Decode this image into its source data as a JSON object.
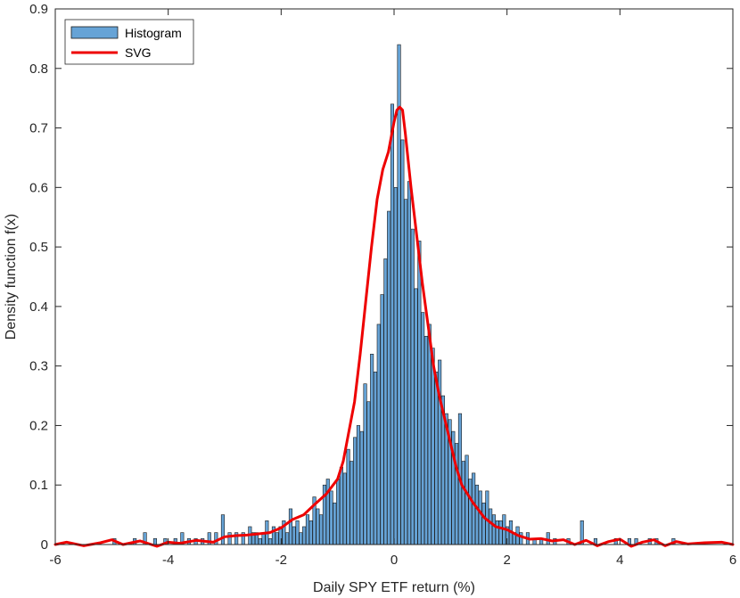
{
  "chart_data": {
    "type": "bar",
    "title": "",
    "xlabel": "Daily SPY ETF return (%)",
    "ylabel": "Density function f(x)",
    "xlim": [
      -6,
      6
    ],
    "ylim": [
      0,
      0.9
    ],
    "xticks": [
      -6,
      -4,
      -2,
      0,
      2,
      4,
      6
    ],
    "yticks": [
      0,
      0.1,
      0.2,
      0.3,
      0.4,
      0.5,
      0.6,
      0.7,
      0.8,
      0.9
    ],
    "grid": false,
    "legend_location": "top-left",
    "colors": {
      "histogram": "#66a3d6",
      "svg": "#ee0000",
      "edge": "#1a1a1a"
    },
    "series": [
      {
        "name": "Histogram",
        "kind": "histogram",
        "bin_width": 0.06,
        "bins": [
          [
            -4.98,
            0.01
          ],
          [
            -4.62,
            0.01
          ],
          [
            -4.44,
            0.02
          ],
          [
            -4.26,
            0.01
          ],
          [
            -4.08,
            0.01
          ],
          [
            -3.9,
            0.01
          ],
          [
            -3.78,
            0.02
          ],
          [
            -3.66,
            0.01
          ],
          [
            -3.54,
            0.01
          ],
          [
            -3.42,
            0.01
          ],
          [
            -3.3,
            0.02
          ],
          [
            -3.18,
            0.02
          ],
          [
            -3.06,
            0.05
          ],
          [
            -2.94,
            0.02
          ],
          [
            -2.82,
            0.02
          ],
          [
            -2.7,
            0.02
          ],
          [
            -2.58,
            0.03
          ],
          [
            -2.52,
            0.02
          ],
          [
            -2.46,
            0.02
          ],
          [
            -2.4,
            0.01
          ],
          [
            -2.34,
            0.02
          ],
          [
            -2.28,
            0.04
          ],
          [
            -2.22,
            0.01
          ],
          [
            -2.16,
            0.03
          ],
          [
            -2.1,
            0.02
          ],
          [
            -2.04,
            0.03
          ],
          [
            -1.98,
            0.04
          ],
          [
            -1.92,
            0.02
          ],
          [
            -1.86,
            0.06
          ],
          [
            -1.8,
            0.03
          ],
          [
            -1.74,
            0.04
          ],
          [
            -1.68,
            0.02
          ],
          [
            -1.62,
            0.03
          ],
          [
            -1.56,
            0.05
          ],
          [
            -1.5,
            0.04
          ],
          [
            -1.44,
            0.08
          ],
          [
            -1.38,
            0.06
          ],
          [
            -1.32,
            0.05
          ],
          [
            -1.26,
            0.1
          ],
          [
            -1.2,
            0.11
          ],
          [
            -1.14,
            0.09
          ],
          [
            -1.08,
            0.07
          ],
          [
            -1.02,
            0.11
          ],
          [
            -0.96,
            0.13
          ],
          [
            -0.9,
            0.12
          ],
          [
            -0.84,
            0.16
          ],
          [
            -0.78,
            0.14
          ],
          [
            -0.72,
            0.18
          ],
          [
            -0.66,
            0.2
          ],
          [
            -0.6,
            0.19
          ],
          [
            -0.54,
            0.27
          ],
          [
            -0.48,
            0.24
          ],
          [
            -0.42,
            0.32
          ],
          [
            -0.36,
            0.29
          ],
          [
            -0.3,
            0.37
          ],
          [
            -0.24,
            0.42
          ],
          [
            -0.18,
            0.48
          ],
          [
            -0.12,
            0.56
          ],
          [
            -0.06,
            0.74
          ],
          [
            0.0,
            0.6
          ],
          [
            0.06,
            0.84
          ],
          [
            0.12,
            0.68
          ],
          [
            0.18,
            0.58
          ],
          [
            0.24,
            0.61
          ],
          [
            0.3,
            0.53
          ],
          [
            0.36,
            0.43
          ],
          [
            0.42,
            0.51
          ],
          [
            0.48,
            0.39
          ],
          [
            0.54,
            0.35
          ],
          [
            0.6,
            0.37
          ],
          [
            0.66,
            0.33
          ],
          [
            0.72,
            0.29
          ],
          [
            0.78,
            0.31
          ],
          [
            0.84,
            0.25
          ],
          [
            0.9,
            0.22
          ],
          [
            0.96,
            0.21
          ],
          [
            1.02,
            0.19
          ],
          [
            1.08,
            0.17
          ],
          [
            1.14,
            0.22
          ],
          [
            1.2,
            0.14
          ],
          [
            1.26,
            0.15
          ],
          [
            1.32,
            0.11
          ],
          [
            1.38,
            0.12
          ],
          [
            1.44,
            0.1
          ],
          [
            1.5,
            0.09
          ],
          [
            1.56,
            0.07
          ],
          [
            1.62,
            0.09
          ],
          [
            1.68,
            0.06
          ],
          [
            1.74,
            0.05
          ],
          [
            1.8,
            0.04
          ],
          [
            1.86,
            0.04
          ],
          [
            1.92,
            0.05
          ],
          [
            1.98,
            0.03
          ],
          [
            2.04,
            0.04
          ],
          [
            2.1,
            0.02
          ],
          [
            2.16,
            0.03
          ],
          [
            2.22,
            0.02
          ],
          [
            2.34,
            0.02
          ],
          [
            2.46,
            0.01
          ],
          [
            2.58,
            0.01
          ],
          [
            2.7,
            0.02
          ],
          [
            2.82,
            0.01
          ],
          [
            3.06,
            0.01
          ],
          [
            3.3,
            0.04
          ],
          [
            3.54,
            0.01
          ],
          [
            3.9,
            0.01
          ],
          [
            4.14,
            0.01
          ],
          [
            4.26,
            0.01
          ],
          [
            4.5,
            0.01
          ],
          [
            4.62,
            0.01
          ],
          [
            4.92,
            0.01
          ]
        ]
      },
      {
        "name": "SVG",
        "kind": "line",
        "x": [
          -6.0,
          -5.8,
          -5.5,
          -5.2,
          -5.0,
          -4.8,
          -4.5,
          -4.2,
          -4.0,
          -3.8,
          -3.5,
          -3.2,
          -3.0,
          -2.8,
          -2.6,
          -2.4,
          -2.2,
          -2.0,
          -1.8,
          -1.6,
          -1.4,
          -1.2,
          -1.0,
          -0.9,
          -0.8,
          -0.7,
          -0.6,
          -0.5,
          -0.4,
          -0.3,
          -0.2,
          -0.1,
          0.0,
          0.05,
          0.1,
          0.15,
          0.2,
          0.3,
          0.4,
          0.5,
          0.6,
          0.7,
          0.8,
          0.9,
          1.0,
          1.1,
          1.2,
          1.4,
          1.6,
          1.8,
          2.0,
          2.2,
          2.4,
          2.6,
          2.8,
          3.0,
          3.2,
          3.4,
          3.6,
          3.8,
          4.0,
          4.2,
          4.4,
          4.6,
          4.8,
          5.0,
          5.2,
          5.5,
          5.8,
          6.0
        ],
        "y": [
          0.0,
          0.004,
          -0.002,
          0.003,
          0.008,
          0.0,
          0.006,
          -0.003,
          0.004,
          0.002,
          0.007,
          0.004,
          0.013,
          0.015,
          0.016,
          0.018,
          0.02,
          0.028,
          0.042,
          0.05,
          0.068,
          0.085,
          0.11,
          0.14,
          0.19,
          0.24,
          0.32,
          0.41,
          0.5,
          0.58,
          0.63,
          0.66,
          0.71,
          0.73,
          0.735,
          0.73,
          0.69,
          0.6,
          0.52,
          0.44,
          0.37,
          0.3,
          0.25,
          0.21,
          0.17,
          0.13,
          0.1,
          0.07,
          0.045,
          0.03,
          0.025,
          0.015,
          0.009,
          0.01,
          0.006,
          0.008,
          0.0,
          0.007,
          -0.002,
          0.005,
          0.009,
          -0.003,
          0.004,
          0.008,
          -0.002,
          0.005,
          0.001,
          0.003,
          0.004,
          0.0
        ]
      }
    ]
  }
}
